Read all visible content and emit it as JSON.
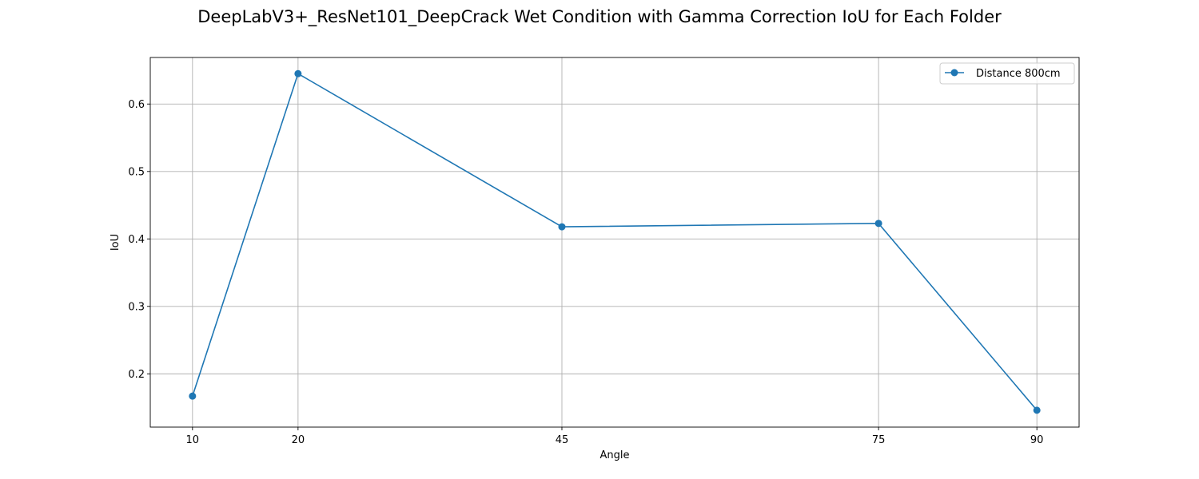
{
  "chart_data": {
    "type": "line",
    "title": "DeepLabV3+_ResNet101_DeepCrack Wet Condition with Gamma Correction IoU for Each Folder",
    "xlabel": "Angle",
    "ylabel": "IoU",
    "x": [
      10,
      20,
      45,
      75,
      90
    ],
    "xticks": [
      "10",
      "20",
      "45",
      "75",
      "90"
    ],
    "yticks": [
      0.2,
      0.3,
      0.4,
      0.5,
      0.6
    ],
    "ytick_labels": [
      "0.2",
      "0.3",
      "0.4",
      "0.5",
      "0.6"
    ],
    "xlim": [
      6,
      94
    ],
    "ylim": [
      0.121,
      0.669
    ],
    "grid": true,
    "legend_position": "top-right",
    "series": [
      {
        "name": "Distance 800cm",
        "color": "#1f77b4",
        "marker": "circle",
        "values": [
          0.167,
          0.645,
          0.418,
          0.423,
          0.146
        ]
      }
    ]
  }
}
